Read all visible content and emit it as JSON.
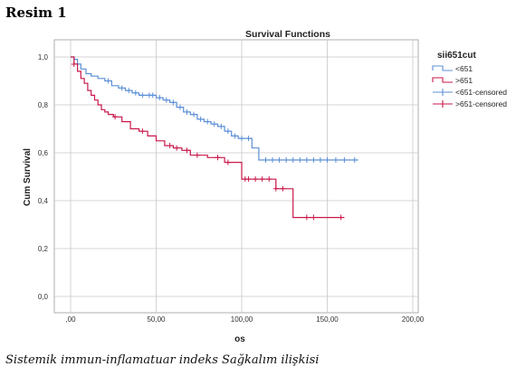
{
  "figure_label": "Resim 1",
  "caption": "Sistemik immun-inflamatuar indeks Sağkalım ilişkisi",
  "chart_data": {
    "type": "line",
    "title": "Survival Functions",
    "xlabel": "os",
    "ylabel": "Cum Survival",
    "xlim": [
      0,
      200
    ],
    "ylim": [
      0,
      1
    ],
    "x_ticks": [
      ",00",
      "50,00",
      "100,00",
      "150,00",
      "200,00"
    ],
    "y_ticks": [
      "0,0",
      "0,2",
      "0,4",
      "0,6",
      "0,8",
      "1,0"
    ],
    "grid": true,
    "legend_title": "sii651cut",
    "legend_position": "right",
    "legend": [
      "<651",
      ">651",
      "<651-censored",
      ">651-censored"
    ],
    "colors": {
      "<651": "#5b8fd6",
      ">651": "#c9184a"
    },
    "series": [
      {
        "name": "<651",
        "step_x": [
          0,
          2,
          4,
          6,
          9,
          12,
          16,
          20,
          24,
          28,
          32,
          36,
          40,
          45,
          50,
          54,
          58,
          62,
          66,
          70,
          74,
          78,
          82,
          86,
          90,
          94,
          98,
          102,
          106,
          110,
          168
        ],
        "step_y": [
          1.0,
          0.99,
          0.97,
          0.95,
          0.93,
          0.92,
          0.91,
          0.9,
          0.88,
          0.87,
          0.86,
          0.85,
          0.84,
          0.84,
          0.83,
          0.82,
          0.81,
          0.79,
          0.77,
          0.76,
          0.74,
          0.73,
          0.72,
          0.71,
          0.69,
          0.67,
          0.66,
          0.66,
          0.62,
          0.57,
          0.57
        ],
        "censored_x": [
          22,
          30,
          34,
          38,
          42,
          46,
          48,
          52,
          56,
          60,
          64,
          68,
          72,
          76,
          80,
          84,
          88,
          92,
          96,
          100,
          104,
          114,
          118,
          122,
          126,
          130,
          134,
          138,
          142,
          146,
          150,
          155,
          160,
          166
        ]
      },
      {
        "name": ">651",
        "step_x": [
          0,
          2,
          4,
          6,
          8,
          10,
          12,
          14,
          16,
          18,
          20,
          22,
          25,
          30,
          35,
          40,
          45,
          50,
          55,
          60,
          65,
          70,
          80,
          90,
          100,
          105,
          110,
          115,
          120,
          130,
          160
        ],
        "step_y": [
          1.0,
          0.97,
          0.94,
          0.91,
          0.89,
          0.86,
          0.84,
          0.82,
          0.8,
          0.78,
          0.77,
          0.76,
          0.75,
          0.73,
          0.7,
          0.69,
          0.67,
          0.65,
          0.63,
          0.62,
          0.61,
          0.59,
          0.58,
          0.56,
          0.49,
          0.49,
          0.49,
          0.49,
          0.45,
          0.33,
          0.33
        ],
        "censored_x": [
          2,
          26,
          42,
          58,
          62,
          68,
          74,
          86,
          92,
          102,
          104,
          108,
          112,
          116,
          120,
          124,
          138,
          142,
          158
        ]
      }
    ]
  }
}
